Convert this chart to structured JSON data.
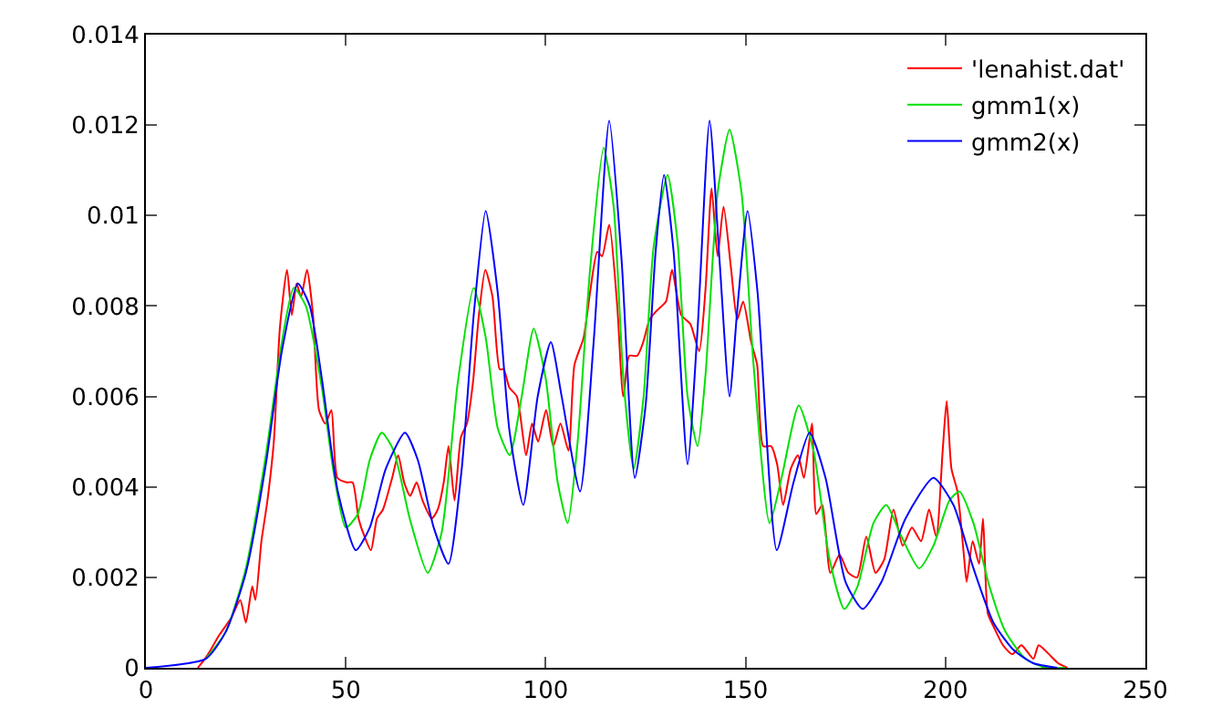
{
  "chart_data": {
    "type": "line",
    "xlim": [
      0,
      250
    ],
    "ylim": [
      0,
      0.014
    ],
    "xticks": [
      0,
      50,
      100,
      150,
      200,
      250
    ],
    "yticks": [
      0,
      0.002,
      0.004,
      0.006,
      0.008,
      0.01,
      0.012,
      0.014
    ],
    "legend": "top right",
    "marker": "none",
    "line_style": "solid",
    "series": [
      {
        "name": "'lenahist.dat'",
        "color": "#ff0000",
        "x": [
          13,
          15.2,
          18.2,
          21.3,
          23.6,
          25,
          26.6,
          27.4,
          28.9,
          30.4,
          32,
          33.5,
          35.3,
          36.5,
          37.7,
          38.8,
          40.3,
          41.8,
          43.3,
          44.9,
          46.4,
          47.9,
          50.2,
          51.7,
          53.2,
          54.7,
          56.3,
          57.8,
          59.3,
          61.6,
          63.1,
          64.6,
          66.1,
          67.7,
          69.2,
          71.5,
          73,
          74.5,
          75.7,
          77.2,
          78.8,
          80.3,
          81.8,
          83.3,
          84.9,
          86.7,
          88.5,
          89.5,
          90.9,
          92.8,
          95.1,
          96.6,
          98.1,
          100.1,
          101.9,
          103.7,
          105.7,
          107.2,
          109.5,
          111.1,
          112.9,
          114.1,
          115.9,
          117.9,
          119.4,
          120.9,
          122.9,
          124.4,
          126,
          127.8,
          130.1,
          131.6,
          133.9,
          136.2,
          138.4,
          140,
          141.5,
          143,
          144.5,
          146.4,
          147.9,
          149.4,
          151.4,
          152.9,
          154.4,
          156.4,
          157.9,
          159.4,
          161.3,
          163.1,
          164.6,
          166.6,
          167.7,
          169.2,
          171.2,
          173.5,
          175.7,
          177.9,
          180.2,
          182.5,
          184.7,
          187,
          189.3,
          191.6,
          193.9,
          195.9,
          197.7,
          199.3,
          200.3,
          201.5,
          203,
          204.6,
          205.3,
          206.8,
          208.4,
          209.4,
          210.6,
          212.1,
          214.4,
          216.7,
          219,
          222,
          223.3,
          225.9,
          228.2,
          230.5
        ],
        "values": [
          0,
          0.00025,
          0.0007,
          0.0011,
          0.0015,
          0.001,
          0.0018,
          0.0015,
          0.0028,
          0.0037,
          0.005,
          0.0075,
          0.0088,
          0.0078,
          0.0085,
          0.0082,
          0.0088,
          0.0078,
          0.0057,
          0.0054,
          0.0057,
          0.0042,
          0.0041,
          0.0041,
          0.0033,
          0.0029,
          0.0026,
          0.0033,
          0.0035,
          0.0042,
          0.0047,
          0.0041,
          0.0038,
          0.0041,
          0.0037,
          0.0033,
          0.0035,
          0.0041,
          0.0049,
          0.0037,
          0.0051,
          0.0054,
          0.0063,
          0.0078,
          0.0088,
          0.0082,
          0.0066,
          0.0066,
          0.0062,
          0.006,
          0.0047,
          0.0054,
          0.005,
          0.0057,
          0.0049,
          0.0054,
          0.0048,
          0.0067,
          0.0073,
          0.0083,
          0.0092,
          0.0091,
          0.0098,
          0.008,
          0.006,
          0.0069,
          0.0069,
          0.0072,
          0.0077,
          0.0079,
          0.0081,
          0.0088,
          0.0078,
          0.0076,
          0.007,
          0.0084,
          0.0106,
          0.0091,
          0.0102,
          0.0088,
          0.0077,
          0.0081,
          0.0072,
          0.0067,
          0.0049,
          0.0049,
          0.0045,
          0.0036,
          0.0044,
          0.0047,
          0.0042,
          0.0054,
          0.0034,
          0.0036,
          0.0021,
          0.0025,
          0.0021,
          0.002,
          0.0029,
          0.0021,
          0.0024,
          0.0035,
          0.0027,
          0.0031,
          0.0028,
          0.0035,
          0.0029,
          0.0048,
          0.0059,
          0.0044,
          0.0039,
          0.0025,
          0.0019,
          0.0028,
          0.0023,
          0.0033,
          0.0012,
          0.0009,
          0.0005,
          0.0003,
          0.0005,
          0.0002,
          0.0005,
          0.0003,
          0.0001,
          0
        ]
      },
      {
        "name": "gmm1(x)",
        "color": "#00e000",
        "x": [
          15,
          20,
          25,
          30,
          34,
          37,
          40,
          44,
          47,
          50,
          53,
          56,
          59,
          62,
          66,
          70.5,
          74,
          78,
          82,
          85,
          88,
          91,
          94,
          97,
          100,
          103,
          105.5,
          108,
          111,
          114.5,
          117,
          119.5,
          122,
          124.5,
          127,
          130.5,
          133,
          135.5,
          138,
          140,
          143,
          146,
          149,
          152,
          156,
          159,
          163.3,
          167,
          171,
          174.7,
          178,
          182,
          185.2,
          189,
          193.4,
          197,
          201,
          203.5,
          207,
          211,
          215,
          220,
          225,
          230
        ],
        "values": [
          0.0002,
          0.0008,
          0.0022,
          0.0047,
          0.0072,
          0.0084,
          0.008,
          0.0062,
          0.0043,
          0.0031,
          0.0034,
          0.0046,
          0.0052,
          0.0048,
          0.0033,
          0.0021,
          0.003,
          0.0063,
          0.0084,
          0.0073,
          0.0053,
          0.0047,
          0.006,
          0.0075,
          0.0064,
          0.0041,
          0.0032,
          0.005,
          0.0087,
          0.0115,
          0.0102,
          0.0063,
          0.0044,
          0.006,
          0.0093,
          0.0109,
          0.0094,
          0.006,
          0.0049,
          0.0065,
          0.0105,
          0.0119,
          0.0105,
          0.0067,
          0.0032,
          0.0042,
          0.0058,
          0.0048,
          0.0024,
          0.0013,
          0.0018,
          0.0032,
          0.0036,
          0.0029,
          0.0022,
          0.0027,
          0.0037,
          0.0039,
          0.0032,
          0.0018,
          0.0008,
          0.0002,
          0,
          0
        ]
      },
      {
        "name": "gmm2(x)",
        "color": "#0000ff",
        "x": [
          0,
          15,
          20,
          25,
          30,
          34,
          38,
          41,
          44,
          48,
          52.5,
          56,
          60,
          64.8,
          68,
          72,
          75.7,
          79,
          82,
          85,
          88,
          91,
          94.4,
          98,
          101.3,
          104,
          108.6,
          112,
          115.9,
          119,
          122.3,
          125,
          127.5,
          129.6,
          132,
          135.5,
          138,
          141,
          143.5,
          146,
          148,
          150.5,
          153,
          157.8,
          162,
          166,
          170,
          175,
          179.3,
          184,
          190,
          197,
          202,
          207,
          212,
          217,
          222,
          228
        ],
        "values": [
          0,
          0.0002,
          0.0008,
          0.0021,
          0.0045,
          0.007,
          0.0085,
          0.008,
          0.0064,
          0.0039,
          0.0026,
          0.0031,
          0.0044,
          0.0052,
          0.0046,
          0.0031,
          0.0023,
          0.0044,
          0.0078,
          0.0101,
          0.0083,
          0.0052,
          0.0036,
          0.006,
          0.0072,
          0.006,
          0.0039,
          0.0072,
          0.0121,
          0.009,
          0.0042,
          0.0058,
          0.0092,
          0.0109,
          0.0092,
          0.0045,
          0.0075,
          0.0121,
          0.009,
          0.006,
          0.008,
          0.0101,
          0.0083,
          0.0026,
          0.0041,
          0.0052,
          0.0042,
          0.0019,
          0.0013,
          0.0019,
          0.0033,
          0.0042,
          0.0036,
          0.0022,
          0.001,
          0.0004,
          0.0001,
          0
        ]
      }
    ]
  }
}
